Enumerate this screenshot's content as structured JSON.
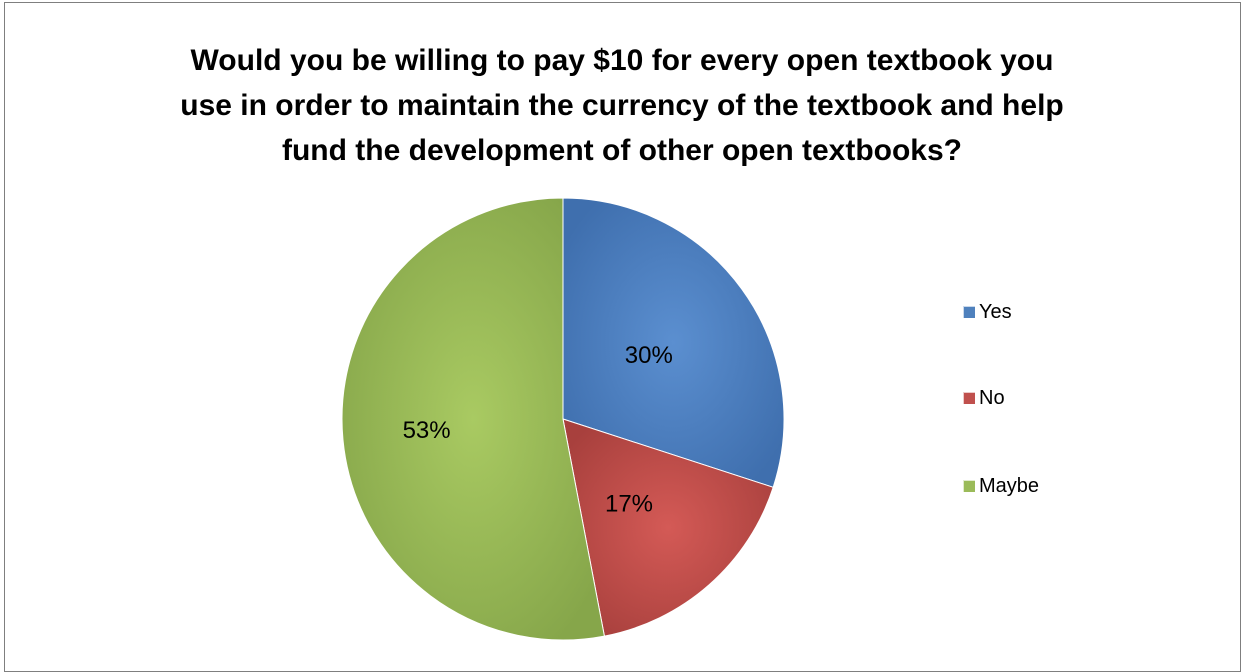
{
  "chart_data": {
    "type": "pie",
    "title_lines": [
      "Would you be willing to pay $10 for every  open textbook you",
      "use in order to maintain the currency of the textbook and help",
      "fund the development of other open textbooks?"
    ],
    "categories": [
      "Yes",
      "No",
      "Maybe"
    ],
    "values": [
      30,
      17,
      53
    ],
    "data_labels": [
      "30%",
      "17%",
      "53%"
    ],
    "colors": [
      "#4f81bd",
      "#c0504d",
      "#9bbb59"
    ],
    "legend_position": "right",
    "start_angle": "12 o'clock, clockwise"
  }
}
